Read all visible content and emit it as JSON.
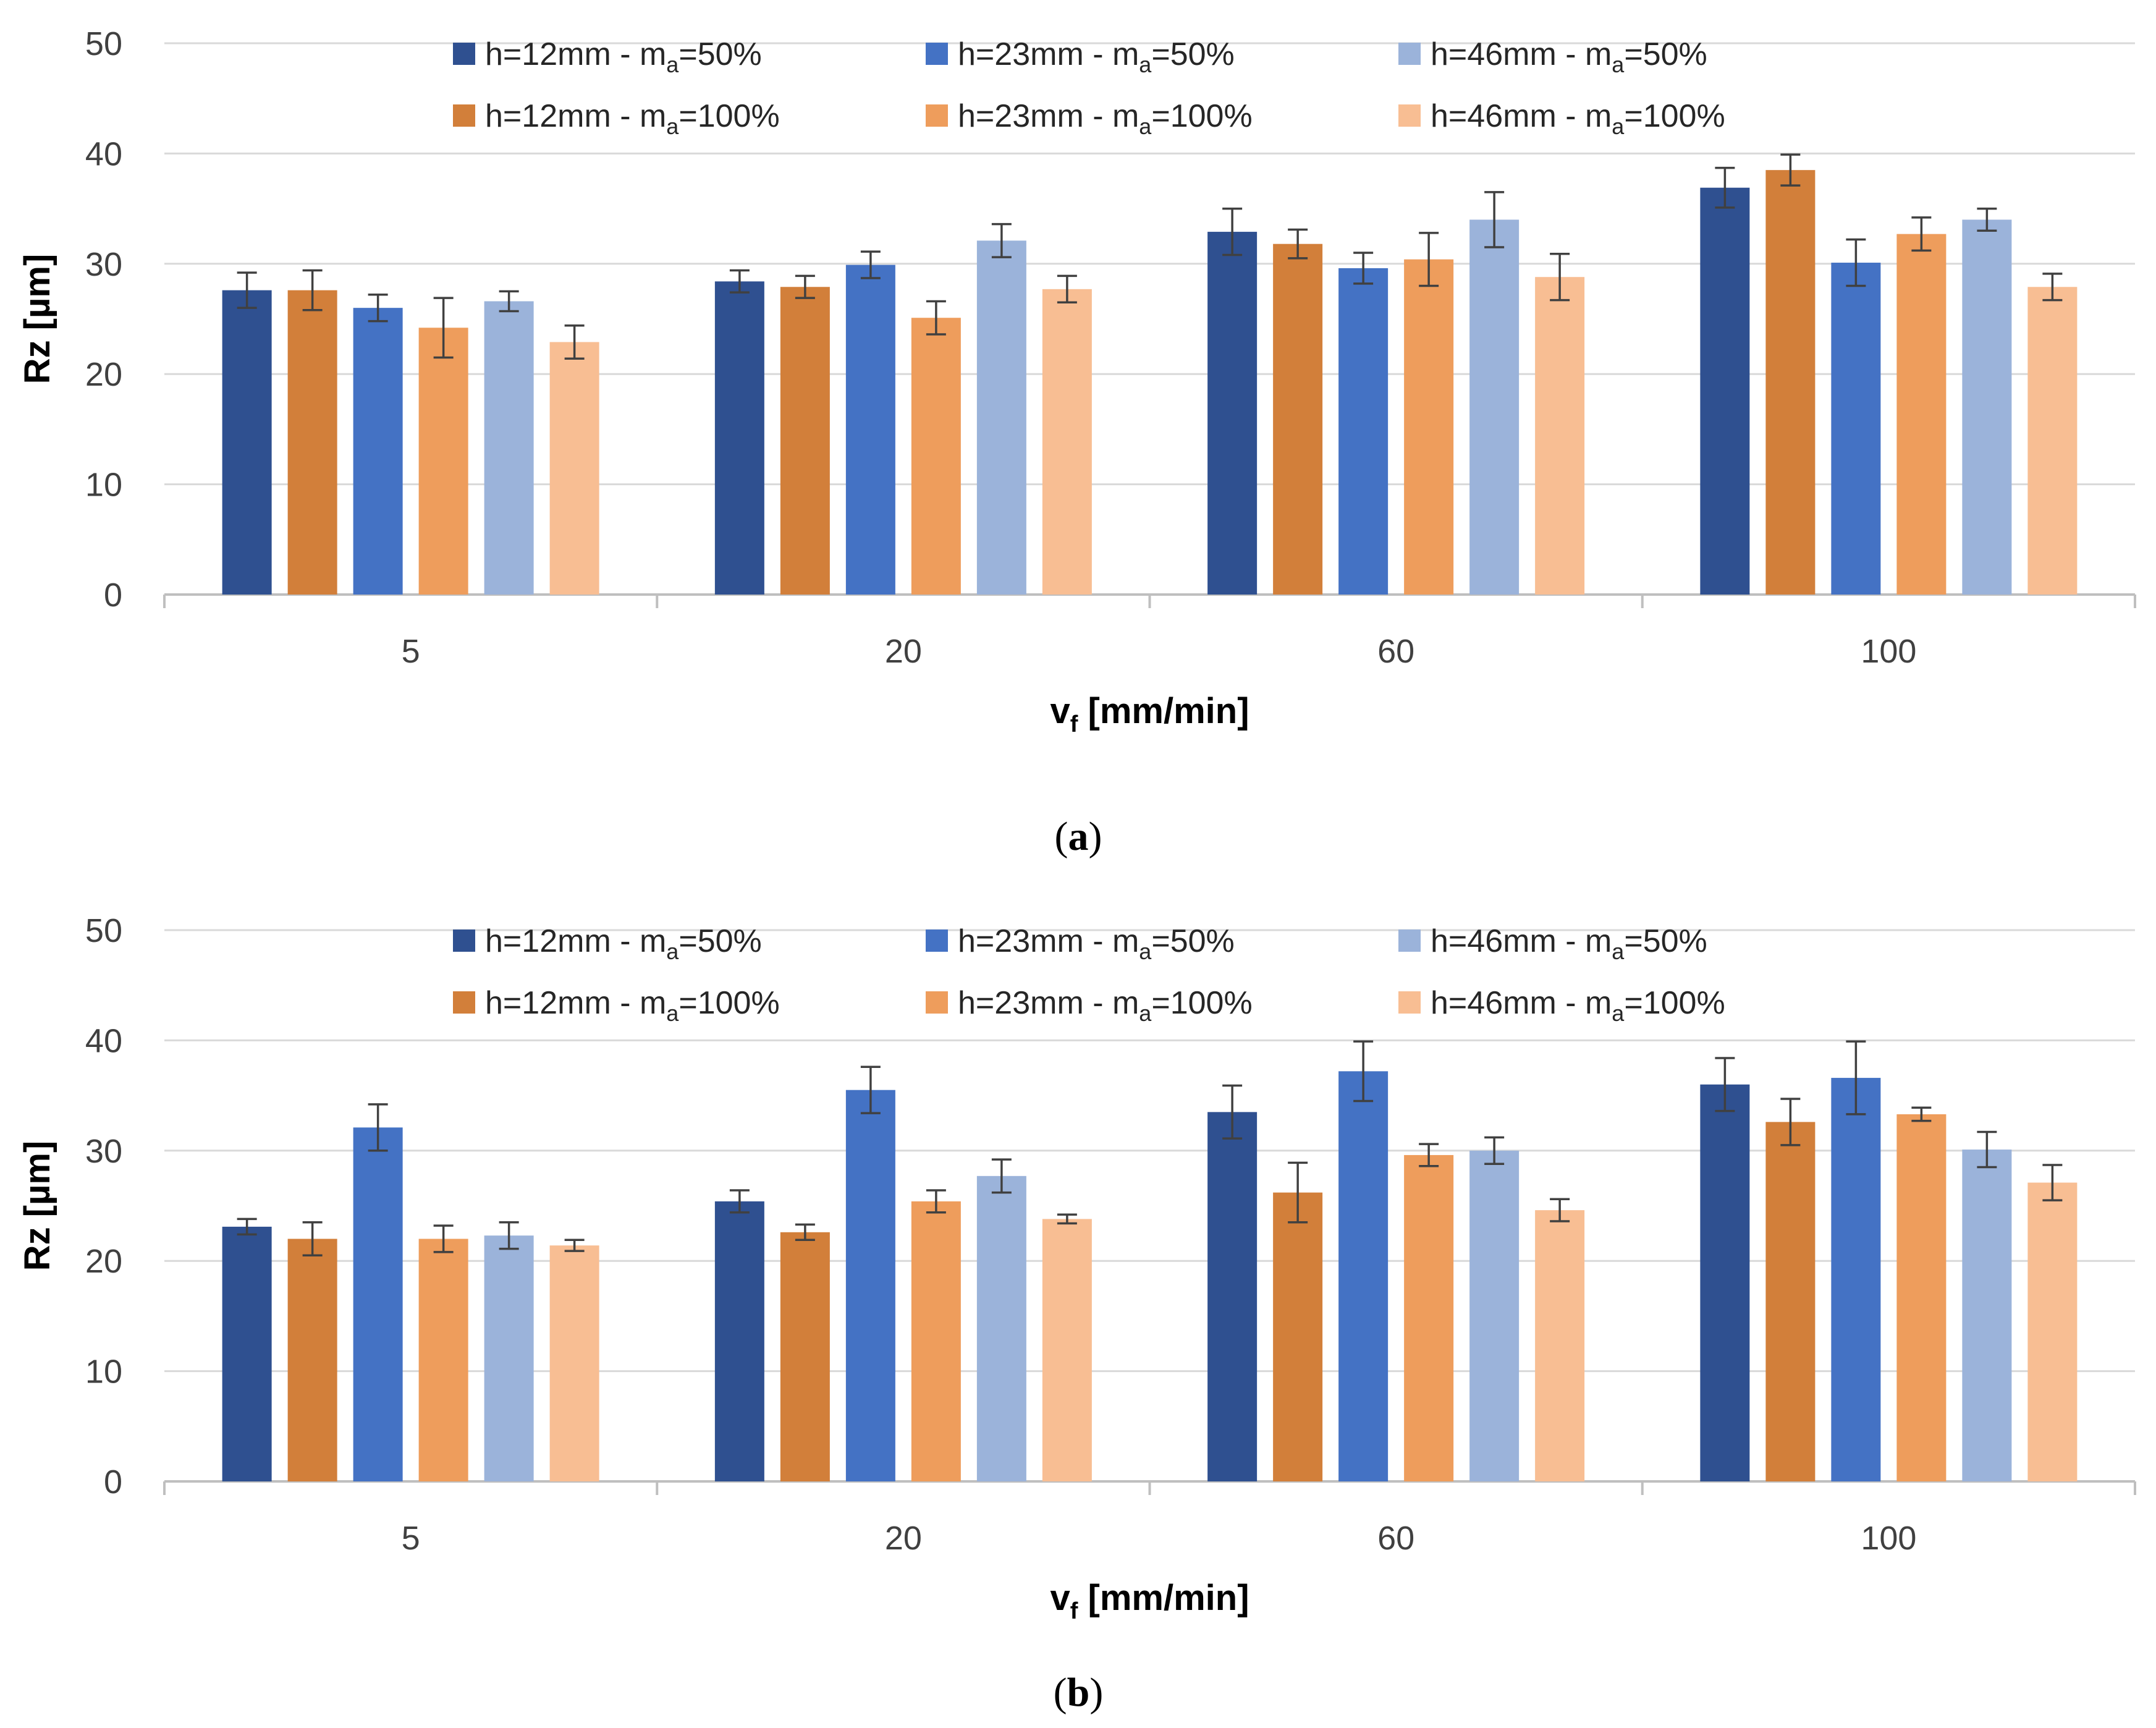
{
  "chart_data": [
    {
      "type": "bar",
      "panel": "a",
      "caption_open": "(",
      "caption_letter": "a",
      "caption_close": ")",
      "categories": [
        "5",
        "20",
        "60",
        "100"
      ],
      "xlabel_main": "v",
      "xlabel_sub": "f",
      "xlabel_rest": " [mm/min]",
      "ylabel": "Rz [µm]",
      "ylim": [
        0,
        50
      ],
      "yticks": [
        "0",
        "10",
        "20",
        "30",
        "40",
        "50"
      ],
      "grid": true,
      "legend_position": "top",
      "series": [
        {
          "name": "h=12mm - ma=50%",
          "label_pre": "h=12mm - m",
          "label_sub": "a",
          "label_post": "=50%",
          "color": "#2F5090",
          "values": [
            27.6,
            28.4,
            32.9,
            36.9
          ],
          "errors": [
            1.6,
            1.0,
            2.1,
            1.8
          ]
        },
        {
          "name": "h=12mm - ma=100%",
          "label_pre": "h=12mm - m",
          "label_sub": "a",
          "label_post": "=100%",
          "color": "#D27F3A",
          "values": [
            27.6,
            27.9,
            31.8,
            38.5
          ],
          "errors": [
            1.8,
            1.0,
            1.3,
            1.4
          ]
        },
        {
          "name": "h=23mm - ma=50%",
          "label_pre": "h=23mm - m",
          "label_sub": "a",
          "label_post": "=50%",
          "color": "#4472C4",
          "values": [
            26.0,
            29.9,
            29.6,
            30.1
          ],
          "errors": [
            1.2,
            1.2,
            1.4,
            2.1
          ]
        },
        {
          "name": "h=23mm - ma=100%",
          "label_pre": "h=23mm - m",
          "label_sub": "a",
          "label_post": "=100%",
          "color": "#EE9D5C",
          "values": [
            24.2,
            25.1,
            30.4,
            32.7
          ],
          "errors": [
            2.7,
            1.5,
            2.4,
            1.5
          ]
        },
        {
          "name": "h=46mm - ma=50%",
          "label_pre": "h=46mm - m",
          "label_sub": "a",
          "label_post": "=50%",
          "color": "#9BB3DA",
          "values": [
            26.6,
            32.1,
            34.0,
            34.0
          ],
          "errors": [
            0.9,
            1.5,
            2.5,
            1.0
          ]
        },
        {
          "name": "h=46mm - ma=100%",
          "label_pre": "h=46mm - m",
          "label_sub": "a",
          "label_post": "=100%",
          "color": "#F8BE93",
          "values": [
            22.9,
            27.7,
            28.8,
            27.9
          ],
          "errors": [
            1.5,
            1.2,
            2.1,
            1.2
          ]
        }
      ]
    },
    {
      "type": "bar",
      "panel": "b",
      "caption_open": "(",
      "caption_letter": "b",
      "caption_close": ")",
      "categories": [
        "5",
        "20",
        "60",
        "100"
      ],
      "xlabel_main": "v",
      "xlabel_sub": "f",
      "xlabel_rest": " [mm/min]",
      "ylabel": "Rz [µm]",
      "ylim": [
        0,
        50
      ],
      "yticks": [
        "0",
        "10",
        "20",
        "30",
        "40",
        "50"
      ],
      "grid": true,
      "legend_position": "top",
      "series": [
        {
          "name": "h=12mm - ma=50%",
          "label_pre": "h=12mm - m",
          "label_sub": "a",
          "label_post": "=50%",
          "color": "#2F5090",
          "values": [
            23.1,
            25.4,
            33.5,
            36.0
          ],
          "errors": [
            0.7,
            1.0,
            2.4,
            2.4
          ]
        },
        {
          "name": "h=12mm - ma=100%",
          "label_pre": "h=12mm - m",
          "label_sub": "a",
          "label_post": "=100%",
          "color": "#D27F3A",
          "values": [
            22.0,
            22.6,
            26.2,
            32.6
          ],
          "errors": [
            1.5,
            0.7,
            2.7,
            2.1
          ]
        },
        {
          "name": "h=23mm - ma=50%",
          "label_pre": "h=23mm - m",
          "label_sub": "a",
          "label_post": "=50%",
          "color": "#4472C4",
          "values": [
            32.1,
            35.5,
            37.2,
            36.6
          ],
          "errors": [
            2.1,
            2.1,
            2.7,
            3.3
          ]
        },
        {
          "name": "h=23mm - ma=100%",
          "label_pre": "h=23mm - m",
          "label_sub": "a",
          "label_post": "=100%",
          "color": "#EE9D5C",
          "values": [
            22.0,
            25.4,
            29.6,
            33.3
          ],
          "errors": [
            1.2,
            1.0,
            1.0,
            0.6
          ]
        },
        {
          "name": "h=46mm - ma=50%",
          "label_pre": "h=46mm - m",
          "label_sub": "a",
          "label_post": "=50%",
          "color": "#9BB3DA",
          "values": [
            22.3,
            27.7,
            30.0,
            30.1
          ],
          "errors": [
            1.2,
            1.5,
            1.2,
            1.6
          ]
        },
        {
          "name": "h=46mm - ma=100%",
          "label_pre": "h=46mm - m",
          "label_sub": "a",
          "label_post": "=100%",
          "color": "#F8BE93",
          "values": [
            21.4,
            23.8,
            24.6,
            27.1
          ],
          "errors": [
            0.5,
            0.4,
            1.0,
            1.6
          ]
        }
      ]
    }
  ]
}
